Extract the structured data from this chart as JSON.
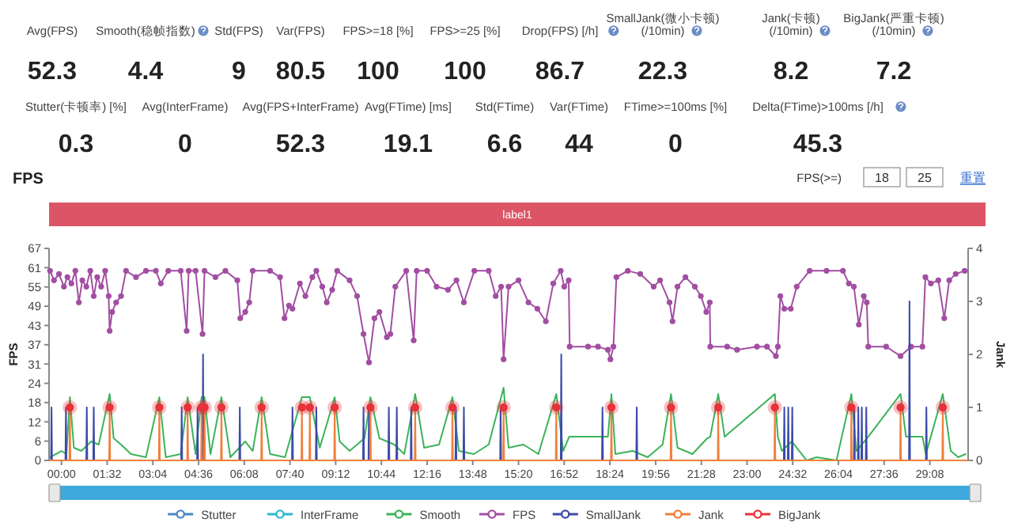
{
  "chart_data": [
    {
      "type": "other",
      "categories": [
        "Avg(FPS)",
        "Smooth(稳帧指数)",
        "Std(FPS)",
        "Var(FPS)",
        "FPS>=18 [%]",
        "FPS>=25 [%]",
        "Drop(FPS) [/h]",
        "SmallJank(微小卡顿)\n(/10min)",
        "Jank(卡顿)\n(/10min)",
        "BigJank(严重卡顿)\n(/10min)",
        "Stutter(卡顿率) [%]",
        "Avg(InterFrame)",
        "Avg(FPS+InterFrame)",
        "Avg(FTime) [ms]",
        "Std(FTime)",
        "Var(FTime)",
        "FTime>=100ms [%]",
        "Delta(FTime)>100ms [/h]"
      ],
      "values": [
        52.3,
        4.4,
        9,
        80.5,
        100,
        100,
        86.7,
        22.3,
        8.2,
        7.2,
        0.3,
        0,
        52.3,
        19.1,
        6.6,
        44,
        0,
        45.3
      ],
      "data_labels": true
    },
    {
      "type": "line",
      "title": "FPS",
      "ylabel": "FPS",
      "y2label": "Jank",
      "legend": "bottom",
      "annotations": [
        "FPS(>=)",
        "18",
        "25",
        "重置",
        "label1"
      ],
      "xlim": [
        -25,
        1825
      ],
      "xticks": [
        {
          "value": 0,
          "label": "00:00"
        },
        {
          "value": 92,
          "label": "01:32"
        },
        {
          "value": 184,
          "label": "03:04"
        },
        {
          "value": 276,
          "label": "04:36"
        },
        {
          "value": 368,
          "label": "06:08"
        },
        {
          "value": 460,
          "label": "07:40"
        },
        {
          "value": 552,
          "label": "09:12"
        },
        {
          "value": 644,
          "label": "10:44"
        },
        {
          "value": 736,
          "label": "12:16"
        },
        {
          "value": 828,
          "label": "13:48"
        },
        {
          "value": 920,
          "label": "15:20"
        },
        {
          "value": 1012,
          "label": "16:52"
        },
        {
          "value": 1104,
          "label": "18:24"
        },
        {
          "value": 1196,
          "label": "19:56"
        },
        {
          "value": 1288,
          "label": "21:28"
        },
        {
          "value": 1380,
          "label": "23:00"
        },
        {
          "value": 1472,
          "label": "24:32"
        },
        {
          "value": 1564,
          "label": "26:04"
        },
        {
          "value": 1656,
          "label": "27:36"
        },
        {
          "value": 1748,
          "label": "29:08"
        }
      ],
      "ylim": [
        0,
        67.1
      ],
      "yticks": [
        0,
        {
          "value": 6.1,
          "label": "6"
        },
        {
          "value": 12.2,
          "label": "12"
        },
        {
          "value": 18.3,
          "label": "18"
        },
        {
          "value": 24.4,
          "label": "24"
        },
        {
          "value": 30.5,
          "label": "31"
        },
        {
          "value": 36.6,
          "label": "37"
        },
        {
          "value": 42.7,
          "label": "43"
        },
        {
          "value": 48.8,
          "label": "49"
        },
        {
          "value": 54.9,
          "label": "55"
        },
        61,
        {
          "value": 67.1,
          "label": "67"
        }
      ],
      "y2lim": [
        0,
        4
      ],
      "y2ticks": [
        0,
        1,
        2,
        3,
        4
      ],
      "series": [
        {
          "name": "Stutter",
          "color": "#4a86c8",
          "type": "line"
        },
        {
          "name": "InterFrame",
          "color": "#2bb7d0",
          "type": "line"
        },
        {
          "name": "Smooth",
          "color": "#3cb35a",
          "type": "line",
          "x": [
            -23,
            0,
            10,
            17,
            25,
            40,
            60,
            75,
            97,
            105,
            120,
            140,
            170,
            197,
            210,
            240,
            254,
            270,
            282,
            288,
            300,
            322,
            340,
            370,
            385,
            403,
            420,
            450,
            484,
            500,
            520,
            550,
            560,
            580,
            610,
            622,
            640,
            670,
            690,
            712,
            730,
            760,
            787,
            800,
            830,
            860,
            890,
            900,
            930,
            960,
            996,
            1010,
            1022,
            1100,
            1107,
            1115,
            1150,
            1180,
            1210,
            1227,
            1240,
            1270,
            1300,
            1306,
            1322,
            1335,
            1436,
            1442,
            1450,
            1470,
            1500,
            1520,
            1560,
            1590,
            1600,
            1624,
            1689,
            1700,
            1733,
            1740,
            1774,
            1790,
            1805,
            1820
          ],
          "values": [
            1,
            3,
            2,
            20,
            4,
            3,
            6,
            5,
            21,
            7,
            5,
            2,
            1,
            20,
            1,
            2,
            20,
            2,
            20,
            20,
            2,
            20,
            1,
            6,
            3,
            20,
            2,
            1,
            20,
            20,
            4,
            20,
            6,
            3,
            7,
            20,
            7,
            5,
            2,
            21,
            4,
            5,
            20,
            3,
            2,
            5,
            23,
            4,
            5,
            2,
            21,
            3,
            7.5,
            7.5,
            21,
            2,
            3,
            1,
            5,
            21,
            4,
            2,
            7,
            7.5,
            21,
            7.5,
            21,
            7.5,
            3,
            6,
            0,
            1,
            0,
            21,
            3,
            7.5,
            21,
            7.5,
            7.5,
            2,
            21,
            3,
            1,
            2
          ]
        },
        {
          "name": "FPS",
          "color": "#a24ea2",
          "type": "line",
          "marker": "circle",
          "x": [
            -23,
            -15,
            -5,
            5,
            12,
            20,
            28,
            35,
            42,
            50,
            58,
            65,
            72,
            80,
            88,
            95,
            97,
            102,
            110,
            120,
            130,
            150,
            170,
            190,
            200,
            215,
            240,
            252,
            256,
            270,
            284,
            288,
            310,
            330,
            354,
            360,
            370,
            378,
            385,
            420,
            440,
            449,
            458,
            465,
            480,
            491,
            505,
            513,
            525,
            534,
            545,
            555,
            580,
            595,
            608,
            619,
            630,
            640,
            655,
            662,
            672,
            694,
            709,
            715,
            736,
            755,
            778,
            795,
            810,
            831,
            860,
            874,
            885,
            890,
            900,
            920,
            940,
            958,
            975,
            990,
            1005,
            1012,
            1021,
            1023,
            1060,
            1080,
            1100,
            1105,
            1111,
            1117,
            1140,
            1165,
            1192,
            1205,
            1224,
            1230,
            1240,
            1256,
            1275,
            1287,
            1298,
            1305,
            1306,
            1340,
            1360,
            1400,
            1420,
            1438,
            1442,
            1447,
            1455,
            1468,
            1480,
            1506,
            1540,
            1573,
            1585,
            1595,
            1605,
            1615,
            1621,
            1624,
            1660,
            1689,
            1710,
            1733,
            1739,
            1750,
            1765,
            1777,
            1787,
            1800,
            1818
          ],
          "values": [
            60,
            57,
            59,
            55,
            58,
            56,
            60,
            50,
            57,
            55,
            60,
            52,
            58,
            55,
            60,
            52,
            41,
            47,
            50,
            52,
            60,
            58,
            60,
            60,
            56,
            60,
            60,
            41,
            60,
            60,
            40,
            60,
            58,
            60,
            57,
            45,
            47,
            50,
            60,
            60,
            58,
            45,
            49,
            48,
            56,
            52,
            58,
            60,
            55,
            50,
            54,
            60,
            57,
            52,
            40,
            31,
            45,
            47,
            39,
            40,
            55,
            60,
            38,
            60,
            60,
            55,
            54,
            57,
            50,
            60,
            60,
            52,
            55,
            32,
            55,
            57,
            50,
            48,
            44,
            56,
            60,
            55,
            57,
            36,
            36,
            36,
            35,
            32,
            36,
            58,
            60,
            59,
            55,
            57,
            50,
            44,
            55,
            58,
            55,
            52,
            47,
            50,
            36,
            36,
            35,
            36,
            36,
            33,
            36,
            52,
            48,
            48,
            55,
            60,
            60,
            60,
            56,
            55,
            43,
            52,
            50,
            36,
            36,
            33,
            36,
            36,
            58,
            56,
            57,
            45,
            57,
            59,
            60
          ]
        },
        {
          "name": "SmallJank",
          "color": "#3a4ba8",
          "type": "line",
          "axis": "y2",
          "x": [
            -21,
            -20,
            -19,
            8,
            9,
            10,
            50,
            51,
            52,
            64,
            65,
            66,
            241,
            242,
            243,
            273,
            274,
            275,
            284,
            285,
            286,
            358,
            359,
            360,
            464,
            465,
            466,
            512,
            513,
            514,
            607,
            608,
            609,
            618,
            619,
            620,
            658,
            659,
            660,
            674,
            675,
            676,
            703,
            704,
            705,
            793,
            794,
            795,
            809,
            810,
            811,
            883,
            884,
            885,
            1005,
            1006,
            1007,
            1088,
            1089,
            1090,
            1157,
            1158,
            1159,
            1454,
            1455,
            1456,
            1462,
            1463,
            1464,
            1470,
            1471,
            1472,
            1595,
            1596,
            1597,
            1603,
            1604,
            1605,
            1610,
            1611,
            1612,
            1619,
            1620,
            1621,
            1706,
            1707,
            1708,
            1740,
            1741,
            1742
          ],
          "values": [
            0,
            1,
            0,
            0,
            1,
            0,
            0,
            1,
            0,
            0,
            1,
            0,
            0,
            1,
            0,
            0,
            1,
            0,
            0,
            2,
            0,
            0,
            1,
            0,
            0,
            1,
            0,
            0,
            1,
            0,
            0,
            1,
            0,
            0,
            1,
            0,
            0,
            1,
            0,
            0,
            1,
            0,
            0,
            1,
            0,
            0,
            1,
            0,
            0,
            1,
            0,
            0,
            1,
            0,
            0,
            2,
            0,
            0,
            1,
            0,
            0,
            1,
            0,
            0,
            1,
            0,
            0,
            1,
            0,
            0,
            1,
            0,
            0,
            1,
            0,
            0,
            1,
            0,
            0,
            1,
            0,
            0,
            1,
            0,
            0,
            3,
            0,
            0,
            1,
            0
          ]
        },
        {
          "name": "Jank",
          "color": "#f07f3c",
          "type": "line",
          "axis": "y2",
          "x": [
            -25,
            16,
            17,
            18,
            96,
            97,
            98,
            196,
            197,
            198,
            253,
            254,
            255,
            281,
            282,
            283,
            287,
            288,
            289,
            321,
            322,
            323,
            402,
            403,
            404,
            483,
            484,
            485,
            499,
            500,
            501,
            549,
            550,
            551,
            621,
            622,
            623,
            711,
            712,
            713,
            786,
            787,
            788,
            889,
            890,
            891,
            995,
            996,
            997,
            1106,
            1107,
            1108,
            1226,
            1227,
            1228,
            1321,
            1322,
            1323,
            1435,
            1436,
            1437,
            1589,
            1590,
            1591,
            1688,
            1689,
            1690,
            1773,
            1774,
            1775,
            1825
          ],
          "values": [
            0,
            0,
            1,
            0,
            0,
            1,
            0,
            0,
            1,
            0,
            0,
            1,
            0,
            0,
            1,
            0,
            0,
            1,
            0,
            0,
            1,
            0,
            0,
            1,
            0,
            0,
            1,
            0,
            0,
            1,
            0,
            0,
            1,
            0,
            0,
            1,
            0,
            0,
            1,
            0,
            0,
            1,
            0,
            0,
            1,
            0,
            0,
            1,
            0,
            0,
            1,
            0,
            0,
            1,
            0,
            0,
            1,
            0,
            0,
            1,
            0,
            0,
            1,
            0,
            0,
            1,
            0,
            0,
            1,
            0,
            0
          ]
        },
        {
          "name": "BigJank",
          "color": "#e8333a",
          "type": "scatter",
          "marker": "circle",
          "axis": "y2",
          "x": [
            17,
            97,
            197,
            254,
            282,
            288,
            322,
            403,
            484,
            500,
            550,
            622,
            712,
            787,
            890,
            996,
            1107,
            1227,
            1322,
            1436,
            1590,
            1689,
            1774
          ],
          "values": [
            1,
            1,
            1,
            1,
            1,
            1,
            1,
            1,
            1,
            1,
            1,
            1,
            1,
            1,
            1,
            1,
            1,
            1,
            1,
            1,
            1,
            1,
            1
          ]
        }
      ]
    }
  ]
}
